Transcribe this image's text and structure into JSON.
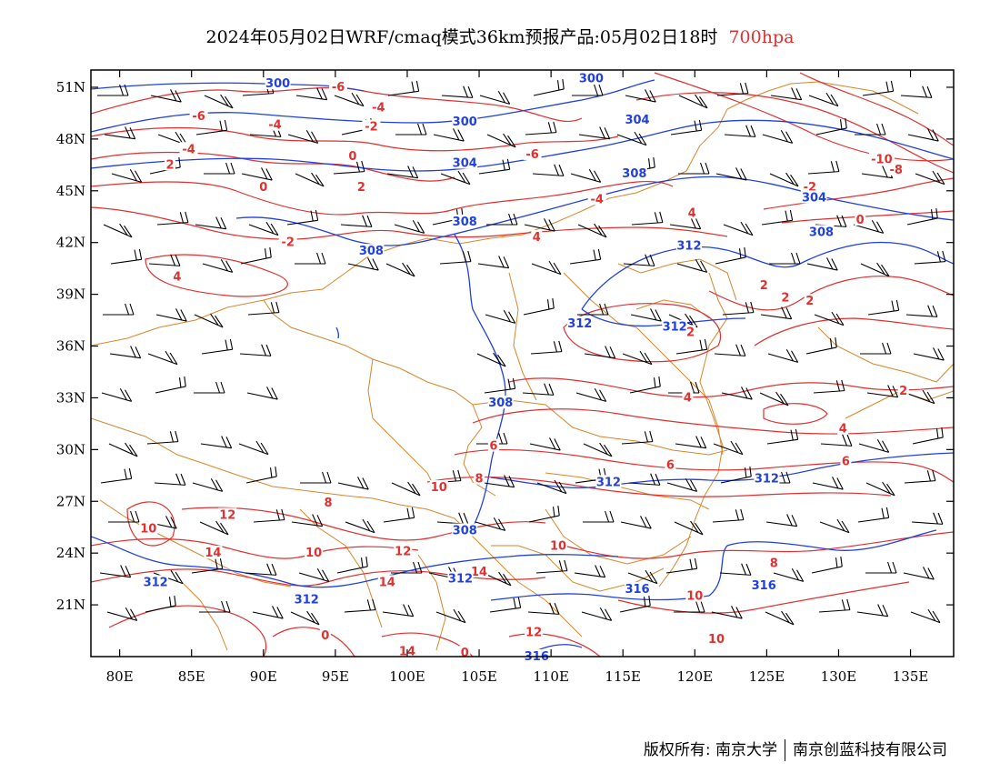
{
  "title": {
    "text": "2024年05月02日WRF/cmaq模式36km预报产品:05月02日18时",
    "level": "700hpa",
    "level_color": "#e03030"
  },
  "colors": {
    "frame": "#000000",
    "temperature_contour": "#e03030",
    "height_contour": "#2040e0",
    "boundaries": "#d8862a",
    "wind_barb": "#000000"
  },
  "axes": {
    "lon_range": [
      78,
      138
    ],
    "lat_range": [
      18,
      52
    ],
    "x_ticks": [
      {
        "v": 80,
        "label": "80E"
      },
      {
        "v": 85,
        "label": "85E"
      },
      {
        "v": 90,
        "label": "90E"
      },
      {
        "v": 95,
        "label": "95E"
      },
      {
        "v": 100,
        "label": "100E"
      },
      {
        "v": 105,
        "label": "105E"
      },
      {
        "v": 110,
        "label": "110E"
      },
      {
        "v": 115,
        "label": "115E"
      },
      {
        "v": 120,
        "label": "120E"
      },
      {
        "v": 125,
        "label": "125E"
      },
      {
        "v": 130,
        "label": "130E"
      },
      {
        "v": 135,
        "label": "135E"
      }
    ],
    "y_ticks": [
      {
        "v": 51,
        "label": "51N"
      },
      {
        "v": 48,
        "label": "48N"
      },
      {
        "v": 45,
        "label": "45N"
      },
      {
        "v": 42,
        "label": "42N"
      },
      {
        "v": 39,
        "label": "39N"
      },
      {
        "v": 36,
        "label": "36N"
      },
      {
        "v": 33,
        "label": "33N"
      },
      {
        "v": 30,
        "label": "30N"
      },
      {
        "v": 27,
        "label": "27N"
      },
      {
        "v": 24,
        "label": "24N"
      },
      {
        "v": 21,
        "label": "21N"
      }
    ]
  },
  "temp_labels": [
    {
      "lon": 85.5,
      "lat": 49.3,
      "text": "-6"
    },
    {
      "lon": 90.8,
      "lat": 48.8,
      "text": "-4"
    },
    {
      "lon": 84.8,
      "lat": 47.4,
      "text": "-4"
    },
    {
      "lon": 83.5,
      "lat": 46.5,
      "text": "2"
    },
    {
      "lon": 95.2,
      "lat": 51.0,
      "text": "-6"
    },
    {
      "lon": 98.0,
      "lat": 49.8,
      "text": "-4"
    },
    {
      "lon": 97.5,
      "lat": 48.7,
      "text": "-2"
    },
    {
      "lon": 96.2,
      "lat": 47.0,
      "text": "0"
    },
    {
      "lon": 90.0,
      "lat": 45.2,
      "text": "0"
    },
    {
      "lon": 96.8,
      "lat": 45.2,
      "text": "2"
    },
    {
      "lon": 91.7,
      "lat": 42.0,
      "text": "-2"
    },
    {
      "lon": 84.0,
      "lat": 40.0,
      "text": "4"
    },
    {
      "lon": 108.7,
      "lat": 47.1,
      "text": "-6"
    },
    {
      "lon": 113.2,
      "lat": 44.5,
      "text": "-4"
    },
    {
      "lon": 119.8,
      "lat": 43.7,
      "text": "4"
    },
    {
      "lon": 109.0,
      "lat": 42.3,
      "text": "4"
    },
    {
      "lon": 133.0,
      "lat": 46.8,
      "text": "-10"
    },
    {
      "lon": 134.0,
      "lat": 46.2,
      "text": "-8"
    },
    {
      "lon": 128.0,
      "lat": 45.2,
      "text": "-2"
    },
    {
      "lon": 131.5,
      "lat": 43.3,
      "text": "0"
    },
    {
      "lon": 124.8,
      "lat": 39.5,
      "text": "2"
    },
    {
      "lon": 126.3,
      "lat": 38.8,
      "text": "2"
    },
    {
      "lon": 128.0,
      "lat": 38.6,
      "text": "2"
    },
    {
      "lon": 119.7,
      "lat": 36.8,
      "text": "2"
    },
    {
      "lon": 134.5,
      "lat": 33.4,
      "text": "2"
    },
    {
      "lon": 119.5,
      "lat": 33.0,
      "text": "4"
    },
    {
      "lon": 130.3,
      "lat": 31.2,
      "text": "4"
    },
    {
      "lon": 118.3,
      "lat": 29.1,
      "text": "6"
    },
    {
      "lon": 130.5,
      "lat": 29.3,
      "text": "6"
    },
    {
      "lon": 106.0,
      "lat": 30.2,
      "text": "6"
    },
    {
      "lon": 105.0,
      "lat": 28.3,
      "text": "8"
    },
    {
      "lon": 102.2,
      "lat": 27.8,
      "text": "10"
    },
    {
      "lon": 94.5,
      "lat": 26.9,
      "text": "8"
    },
    {
      "lon": 87.5,
      "lat": 26.2,
      "text": "12"
    },
    {
      "lon": 82.0,
      "lat": 25.4,
      "text": "10"
    },
    {
      "lon": 86.5,
      "lat": 24.0,
      "text": "14"
    },
    {
      "lon": 93.5,
      "lat": 24.0,
      "text": "10"
    },
    {
      "lon": 99.7,
      "lat": 24.1,
      "text": "12"
    },
    {
      "lon": 98.6,
      "lat": 22.3,
      "text": "14"
    },
    {
      "lon": 105.0,
      "lat": 22.9,
      "text": "14"
    },
    {
      "lon": 110.5,
      "lat": 24.4,
      "text": "10"
    },
    {
      "lon": 125.5,
      "lat": 23.4,
      "text": "8"
    },
    {
      "lon": 120.0,
      "lat": 21.5,
      "text": "10"
    },
    {
      "lon": 108.8,
      "lat": 19.4,
      "text": "12"
    },
    {
      "lon": 100.0,
      "lat": 18.3,
      "text": "14"
    },
    {
      "lon": 94.3,
      "lat": 19.2,
      "text": "0"
    },
    {
      "lon": 104.0,
      "lat": 18.2,
      "text": "0"
    },
    {
      "lon": 121.5,
      "lat": 19.0,
      "text": "10"
    }
  ],
  "height_labels": [
    {
      "lon": 91.0,
      "lat": 51.2,
      "text": "300"
    },
    {
      "lon": 112.8,
      "lat": 51.5,
      "text": "300"
    },
    {
      "lon": 104.0,
      "lat": 49.0,
      "text": "300"
    },
    {
      "lon": 116.0,
      "lat": 49.1,
      "text": "304"
    },
    {
      "lon": 104.0,
      "lat": 46.6,
      "text": "304"
    },
    {
      "lon": 115.8,
      "lat": 46.0,
      "text": "308"
    },
    {
      "lon": 128.3,
      "lat": 44.6,
      "text": "304"
    },
    {
      "lon": 104.0,
      "lat": 43.2,
      "text": "308"
    },
    {
      "lon": 97.5,
      "lat": 41.5,
      "text": "308"
    },
    {
      "lon": 128.8,
      "lat": 42.6,
      "text": "308"
    },
    {
      "lon": 119.6,
      "lat": 41.8,
      "text": "312"
    },
    {
      "lon": 112.0,
      "lat": 37.3,
      "text": "312"
    },
    {
      "lon": 118.6,
      "lat": 37.1,
      "text": "312"
    },
    {
      "lon": 106.5,
      "lat": 32.7,
      "text": "308"
    },
    {
      "lon": 114.0,
      "lat": 28.1,
      "text": "312"
    },
    {
      "lon": 125.0,
      "lat": 28.3,
      "text": "312"
    },
    {
      "lon": 104.0,
      "lat": 25.3,
      "text": "308"
    },
    {
      "lon": 82.5,
      "lat": 22.3,
      "text": "312"
    },
    {
      "lon": 103.7,
      "lat": 22.5,
      "text": "312"
    },
    {
      "lon": 93.0,
      "lat": 21.3,
      "text": "312"
    },
    {
      "lon": 116.0,
      "lat": 21.9,
      "text": "316"
    },
    {
      "lon": 124.8,
      "lat": 22.1,
      "text": "316"
    },
    {
      "lon": 109.0,
      "lat": 18.0,
      "text": "316"
    }
  ],
  "footer": {
    "left": "版权所有: 南京大学",
    "right": "南京创蓝科技有限公司"
  }
}
